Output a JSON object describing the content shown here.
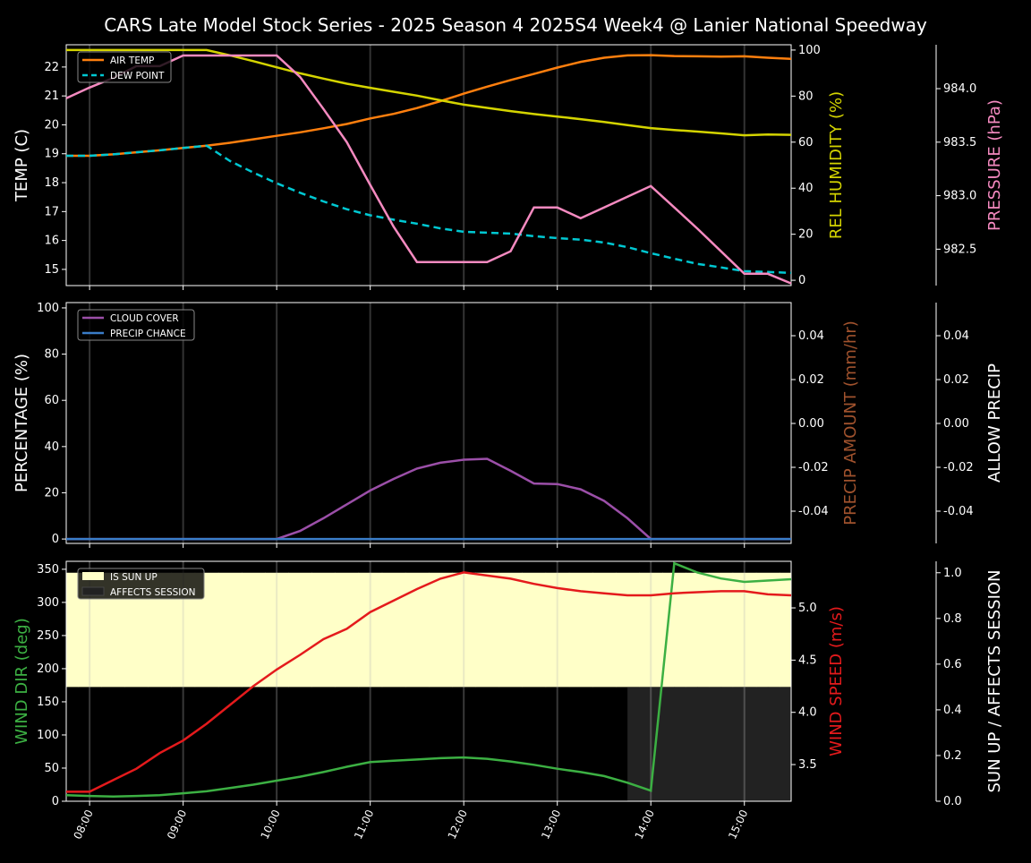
{
  "chart_data": {
    "title": "CARS Late Model Stock Series - 2025 Season 4 2025S4 Week4 @ Lanier National Speedway",
    "type": "line",
    "x": [
      "07:45",
      "08:00",
      "08:15",
      "08:30",
      "08:45",
      "09:00",
      "09:15",
      "09:30",
      "09:45",
      "10:00",
      "10:15",
      "10:30",
      "10:45",
      "11:00",
      "11:15",
      "11:30",
      "11:45",
      "12:00",
      "12:15",
      "12:30",
      "12:45",
      "13:00",
      "13:15",
      "13:30",
      "13:45",
      "14:00",
      "14:15",
      "14:30",
      "14:45",
      "15:00",
      "15:15",
      "15:30"
    ],
    "xticks": [
      "08:00",
      "09:00",
      "10:00",
      "11:00",
      "12:00",
      "13:00",
      "14:00",
      "15:00"
    ],
    "xlim": [
      "07:45",
      "15:30"
    ],
    "panels": [
      {
        "axes": [
          {
            "side": "left",
            "label": "TEMP (C)",
            "color": "#ffffff",
            "ylim": [
              14.44,
              22.77
            ],
            "ticks": [
              15,
              16,
              17,
              18,
              19,
              20,
              21,
              22
            ],
            "decimals": 0
          },
          {
            "side": "right",
            "label": "REL HUMIDITY (%)",
            "color": "#d4d400",
            "ylim": [
              -2.3,
              102.3
            ],
            "ticks": [
              0,
              20,
              40,
              60,
              80,
              100
            ],
            "decimals": 0
          },
          {
            "side": "right2",
            "label": "PRESSURE (hPa)",
            "color": "#f58ac0",
            "ylim": [
              982.16,
              984.41
            ],
            "ticks": [
              982.5,
              983.0,
              983.5,
              984.0
            ],
            "decimals": 1
          }
        ],
        "legend": [
          "AIR TEMP",
          "DEW POINT"
        ],
        "series": [
          {
            "name": "AIR TEMP",
            "axis": 0,
            "color": "#ff7f0e",
            "dash": false,
            "values": [
              18.93,
              18.93,
              18.98,
              19.05,
              19.12,
              19.2,
              19.28,
              19.38,
              19.5,
              19.62,
              19.74,
              19.88,
              20.03,
              20.22,
              20.38,
              20.58,
              20.82,
              21.08,
              21.32,
              21.55,
              21.76,
              21.98,
              22.18,
              22.32,
              22.4,
              22.41,
              22.38,
              22.37,
              22.36,
              22.37,
              22.32,
              22.28
            ]
          },
          {
            "name": "DEW POINT",
            "axis": 0,
            "color": "#00c8d2",
            "dash": true,
            "values": [
              18.93,
              18.93,
              18.98,
              19.05,
              19.12,
              19.2,
              19.28,
              18.75,
              18.35,
              17.98,
              17.65,
              17.35,
              17.08,
              16.87,
              16.72,
              16.58,
              16.42,
              16.3,
              16.27,
              16.24,
              16.15,
              16.08,
              16.03,
              15.93,
              15.77,
              15.56,
              15.37,
              15.19,
              15.07,
              14.94,
              14.91,
              14.88
            ]
          },
          {
            "name": "REL HUMIDITY",
            "axis": 1,
            "color": "#d4d400",
            "dash": false,
            "values": [
              100,
              100,
              100,
              100,
              100,
              100,
              100,
              97.7,
              95.2,
              92.5,
              89.9,
              87.6,
              85.4,
              83.6,
              81.9,
              80.2,
              78.2,
              76.3,
              74.9,
              73.5,
              72.2,
              71.1,
              70.0,
              68.8,
              67.4,
              66.1,
              65.3,
              64.6,
              63.8,
              63.0,
              63.3,
              63.2
            ]
          },
          {
            "name": "PRESSURE",
            "axis": 2,
            "color": "#f58ac0",
            "dash": false,
            "values": [
              983.91,
              984.01,
              984.1,
              984.21,
              984.21,
              984.31,
              984.31,
              984.31,
              984.31,
              984.31,
              984.11,
              983.81,
              983.5,
              983.1,
              982.71,
              982.38,
              982.38,
              982.38,
              982.38,
              982.48,
              982.89,
              982.89,
              982.79,
              982.89,
              982.99,
              983.09,
              982.89,
              982.69,
              982.48,
              982.27,
              982.27,
              982.18
            ]
          }
        ]
      },
      {
        "axes": [
          {
            "side": "left",
            "label": "PERCENTAGE (%)",
            "color": "#ffffff",
            "ylim": [
              -1.9,
              102.3
            ],
            "ticks": [
              0,
              20,
              40,
              60,
              80,
              100
            ],
            "decimals": 0
          },
          {
            "side": "right",
            "label": "PRECIP AMOUNT (mm/hr)",
            "color": "#a0522d",
            "ylim": [
              -0.0547,
              0.0551
            ],
            "ticks": [
              -0.04,
              -0.02,
              0.0,
              0.02,
              0.04
            ],
            "decimals": 2
          },
          {
            "side": "right2",
            "label": "ALLOW PRECIP",
            "color": "#ffffff",
            "ylim": [
              -0.0547,
              0.0551
            ],
            "ticks": [
              -0.04,
              -0.02,
              0.0,
              0.02,
              0.04
            ],
            "decimals": 2
          }
        ],
        "legend": [
          "CLOUD COVER",
          "PRECIP CHANCE"
        ],
        "series": [
          {
            "name": "CLOUD COVER",
            "axis": 0,
            "color": "#9b4fa8",
            "dash": false,
            "values": [
              0,
              0,
              0,
              0,
              0,
              0,
              0,
              0,
              0,
              0,
              3.5,
              9,
              15,
              21,
              26,
              30.5,
              33,
              34.3,
              34.7,
              29.5,
              24,
              23.8,
              21.5,
              16.5,
              9,
              0,
              0,
              0,
              0,
              0,
              0,
              0
            ]
          },
          {
            "name": "PRECIP CHANCE",
            "axis": 0,
            "color": "#3a7dc9",
            "dash": false,
            "values": [
              0,
              0,
              0,
              0,
              0,
              0,
              0,
              0,
              0,
              0,
              0,
              0,
              0,
              0,
              0,
              0,
              0,
              0,
              0,
              0,
              0,
              0,
              0,
              0,
              0,
              0,
              0,
              0,
              0,
              0,
              0,
              0
            ]
          }
        ]
      },
      {
        "axes": [
          {
            "side": "left",
            "label": "WIND DIR (deg)",
            "color": "#3cb043",
            "ylim": [
              0,
              362
            ],
            "ticks": [
              0,
              50,
              100,
              150,
              200,
              250,
              300,
              350
            ],
            "decimals": 0
          },
          {
            "side": "right",
            "label": "WIND SPEED (m/s)",
            "color": "#e41a1c",
            "ylim": [
              3.149,
              5.446
            ],
            "ticks": [
              3.5,
              4.0,
              4.5,
              5.0
            ],
            "decimals": 1
          },
          {
            "side": "right2",
            "label": "SUN UP / AFFECTS SESSION",
            "color": "#ffffff",
            "ylim": [
              0,
              1.05
            ],
            "ticks": [
              0.0,
              0.2,
              0.4,
              0.6,
              0.8,
              1.0
            ],
            "decimals": 1
          }
        ],
        "legend": [
          "IS SUN UP",
          "AFFECTS SESSION"
        ],
        "bands": {
          "is_sun_up": [
            1,
            1,
            1,
            1,
            1,
            1,
            1,
            1,
            1,
            1,
            1,
            1,
            1,
            1,
            1,
            1,
            1,
            1,
            1,
            1,
            1,
            1,
            1,
            1,
            1,
            1,
            1,
            1,
            1,
            1,
            1,
            1
          ],
          "affects_session": [
            0,
            0,
            0,
            0,
            0,
            0,
            0,
            0,
            0,
            0,
            0,
            0,
            0,
            0,
            0,
            0,
            0,
            0,
            0,
            0,
            0,
            0,
            0,
            0,
            1,
            1,
            1,
            1,
            1,
            1,
            1,
            1
          ],
          "sun_color": "#ffffc8",
          "session_color": "#222222"
        },
        "series": [
          {
            "name": "WIND DIR",
            "axis": 0,
            "color": "#3cb043",
            "dash": false,
            "values": [
              9,
              8,
              7,
              8,
              9,
              12,
              15,
              20,
              25,
              31,
              37,
              44,
              52,
              59,
              61,
              63,
              65,
              66,
              64,
              60,
              55,
              49,
              44,
              38,
              28,
              16,
              359,
              345,
              336,
              331,
              333,
              335
            ]
          },
          {
            "name": "WIND SPEED",
            "axis": 1,
            "color": "#e41a1c",
            "dash": false,
            "values": [
              3.24,
              3.24,
              3.35,
              3.46,
              3.61,
              3.73,
              3.89,
              4.07,
              4.25,
              4.41,
              4.55,
              4.7,
              4.8,
              4.96,
              5.07,
              5.18,
              5.28,
              5.34,
              5.31,
              5.28,
              5.23,
              5.19,
              5.16,
              5.14,
              5.12,
              5.12,
              5.14,
              5.15,
              5.16,
              5.16,
              5.13,
              5.12
            ]
          }
        ]
      }
    ]
  }
}
